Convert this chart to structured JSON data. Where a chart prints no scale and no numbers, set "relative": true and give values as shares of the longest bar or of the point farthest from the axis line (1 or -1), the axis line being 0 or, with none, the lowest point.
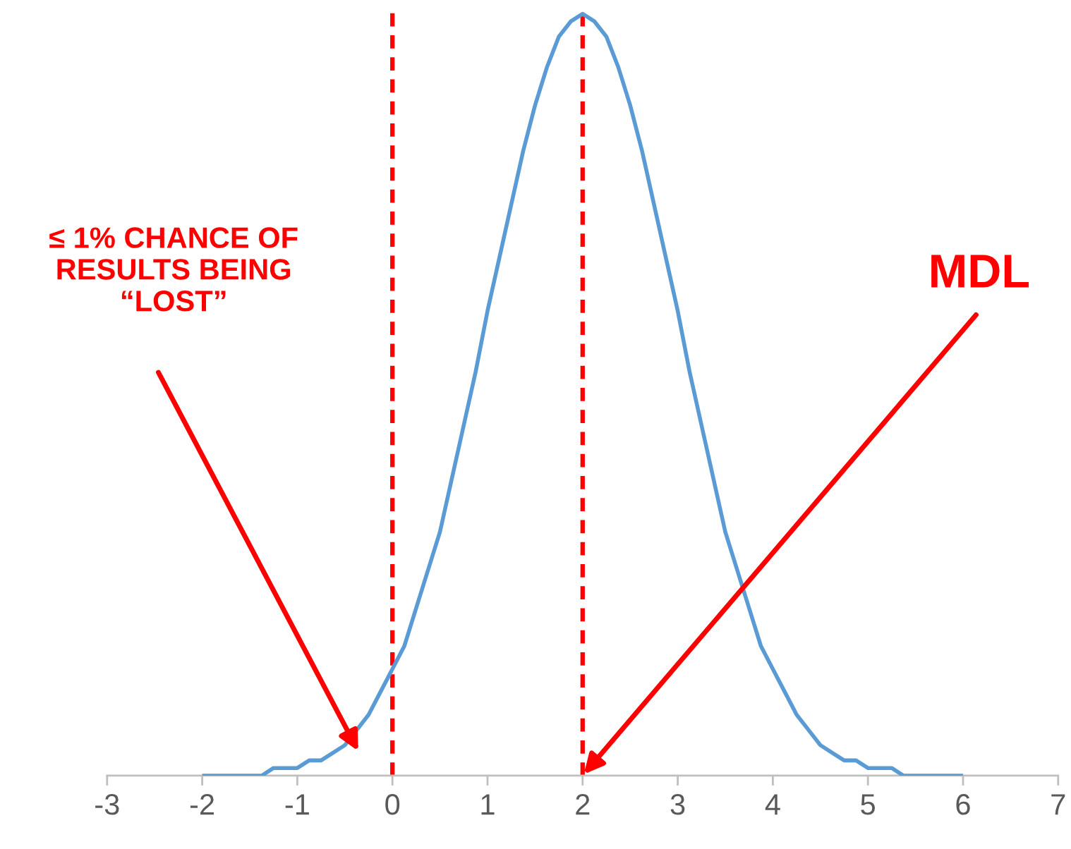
{
  "chart_data": {
    "type": "line",
    "relative": true,
    "x": [
      -2,
      -1.875,
      -1.75,
      -1.625,
      -1.5,
      -1.375,
      -1.25,
      -1.125,
      -1,
      -0.875,
      -0.75,
      -0.625,
      -0.5,
      -0.375,
      -0.25,
      -0.125,
      0,
      0.125,
      0.25,
      0.375,
      0.5,
      0.625,
      0.75,
      0.875,
      1,
      1.125,
      1.25,
      1.375,
      1.5,
      1.625,
      1.75,
      1.875,
      2,
      2.125,
      2.25,
      2.375,
      2.5,
      2.625,
      2.75,
      2.875,
      3,
      3.125,
      3.25,
      3.375,
      3.5,
      3.625,
      3.75,
      3.875,
      4,
      4.125,
      4.25,
      4.375,
      4.5,
      4.625,
      4.75,
      4.875,
      5,
      5.125,
      5.25,
      5.375,
      5.5,
      5.625,
      5.75,
      5.875,
      6
    ],
    "series": [
      {
        "color": "#5b9bd5",
        "values": [
          0.0,
          0.0,
          0.0,
          0.0,
          0.0,
          0.0,
          0.01,
          0.01,
          0.01,
          0.02,
          0.02,
          0.03,
          0.04,
          0.06,
          0.08,
          0.11,
          0.14,
          0.17,
          0.22,
          0.27,
          0.32,
          0.39,
          0.46,
          0.53,
          0.61,
          0.68,
          0.75,
          0.82,
          0.88,
          0.93,
          0.97,
          0.99,
          1,
          0.99,
          0.97,
          0.93,
          0.88,
          0.82,
          0.75,
          0.68,
          0.61,
          0.53,
          0.46,
          0.39,
          0.32,
          0.27,
          0.22,
          0.17,
          0.14,
          0.11,
          0.08,
          0.06,
          0.04,
          0.03,
          0.02,
          0.02,
          0.01,
          0.01,
          0.01,
          0.0,
          0.0,
          0.0,
          0.0,
          0.0,
          0.0
        ]
      }
    ],
    "xlim": [
      -3,
      7
    ],
    "xticks": [
      -3,
      -2,
      -1,
      0,
      1,
      2,
      3,
      4,
      5,
      6,
      7
    ],
    "ref_lines": [
      {
        "axis": "x",
        "value": 0,
        "color": "#ff0000",
        "line_style": "dashed"
      },
      {
        "axis": "x",
        "value": 2,
        "color": "#ff0000",
        "line_style": "dashed"
      }
    ],
    "annotations": [
      "≤ 1% CHANCE OF\nRESULTS BEING\n“LOST”",
      "MDL"
    ],
    "grid": false,
    "legend": false,
    "marker": "none",
    "line_style": "solid"
  }
}
